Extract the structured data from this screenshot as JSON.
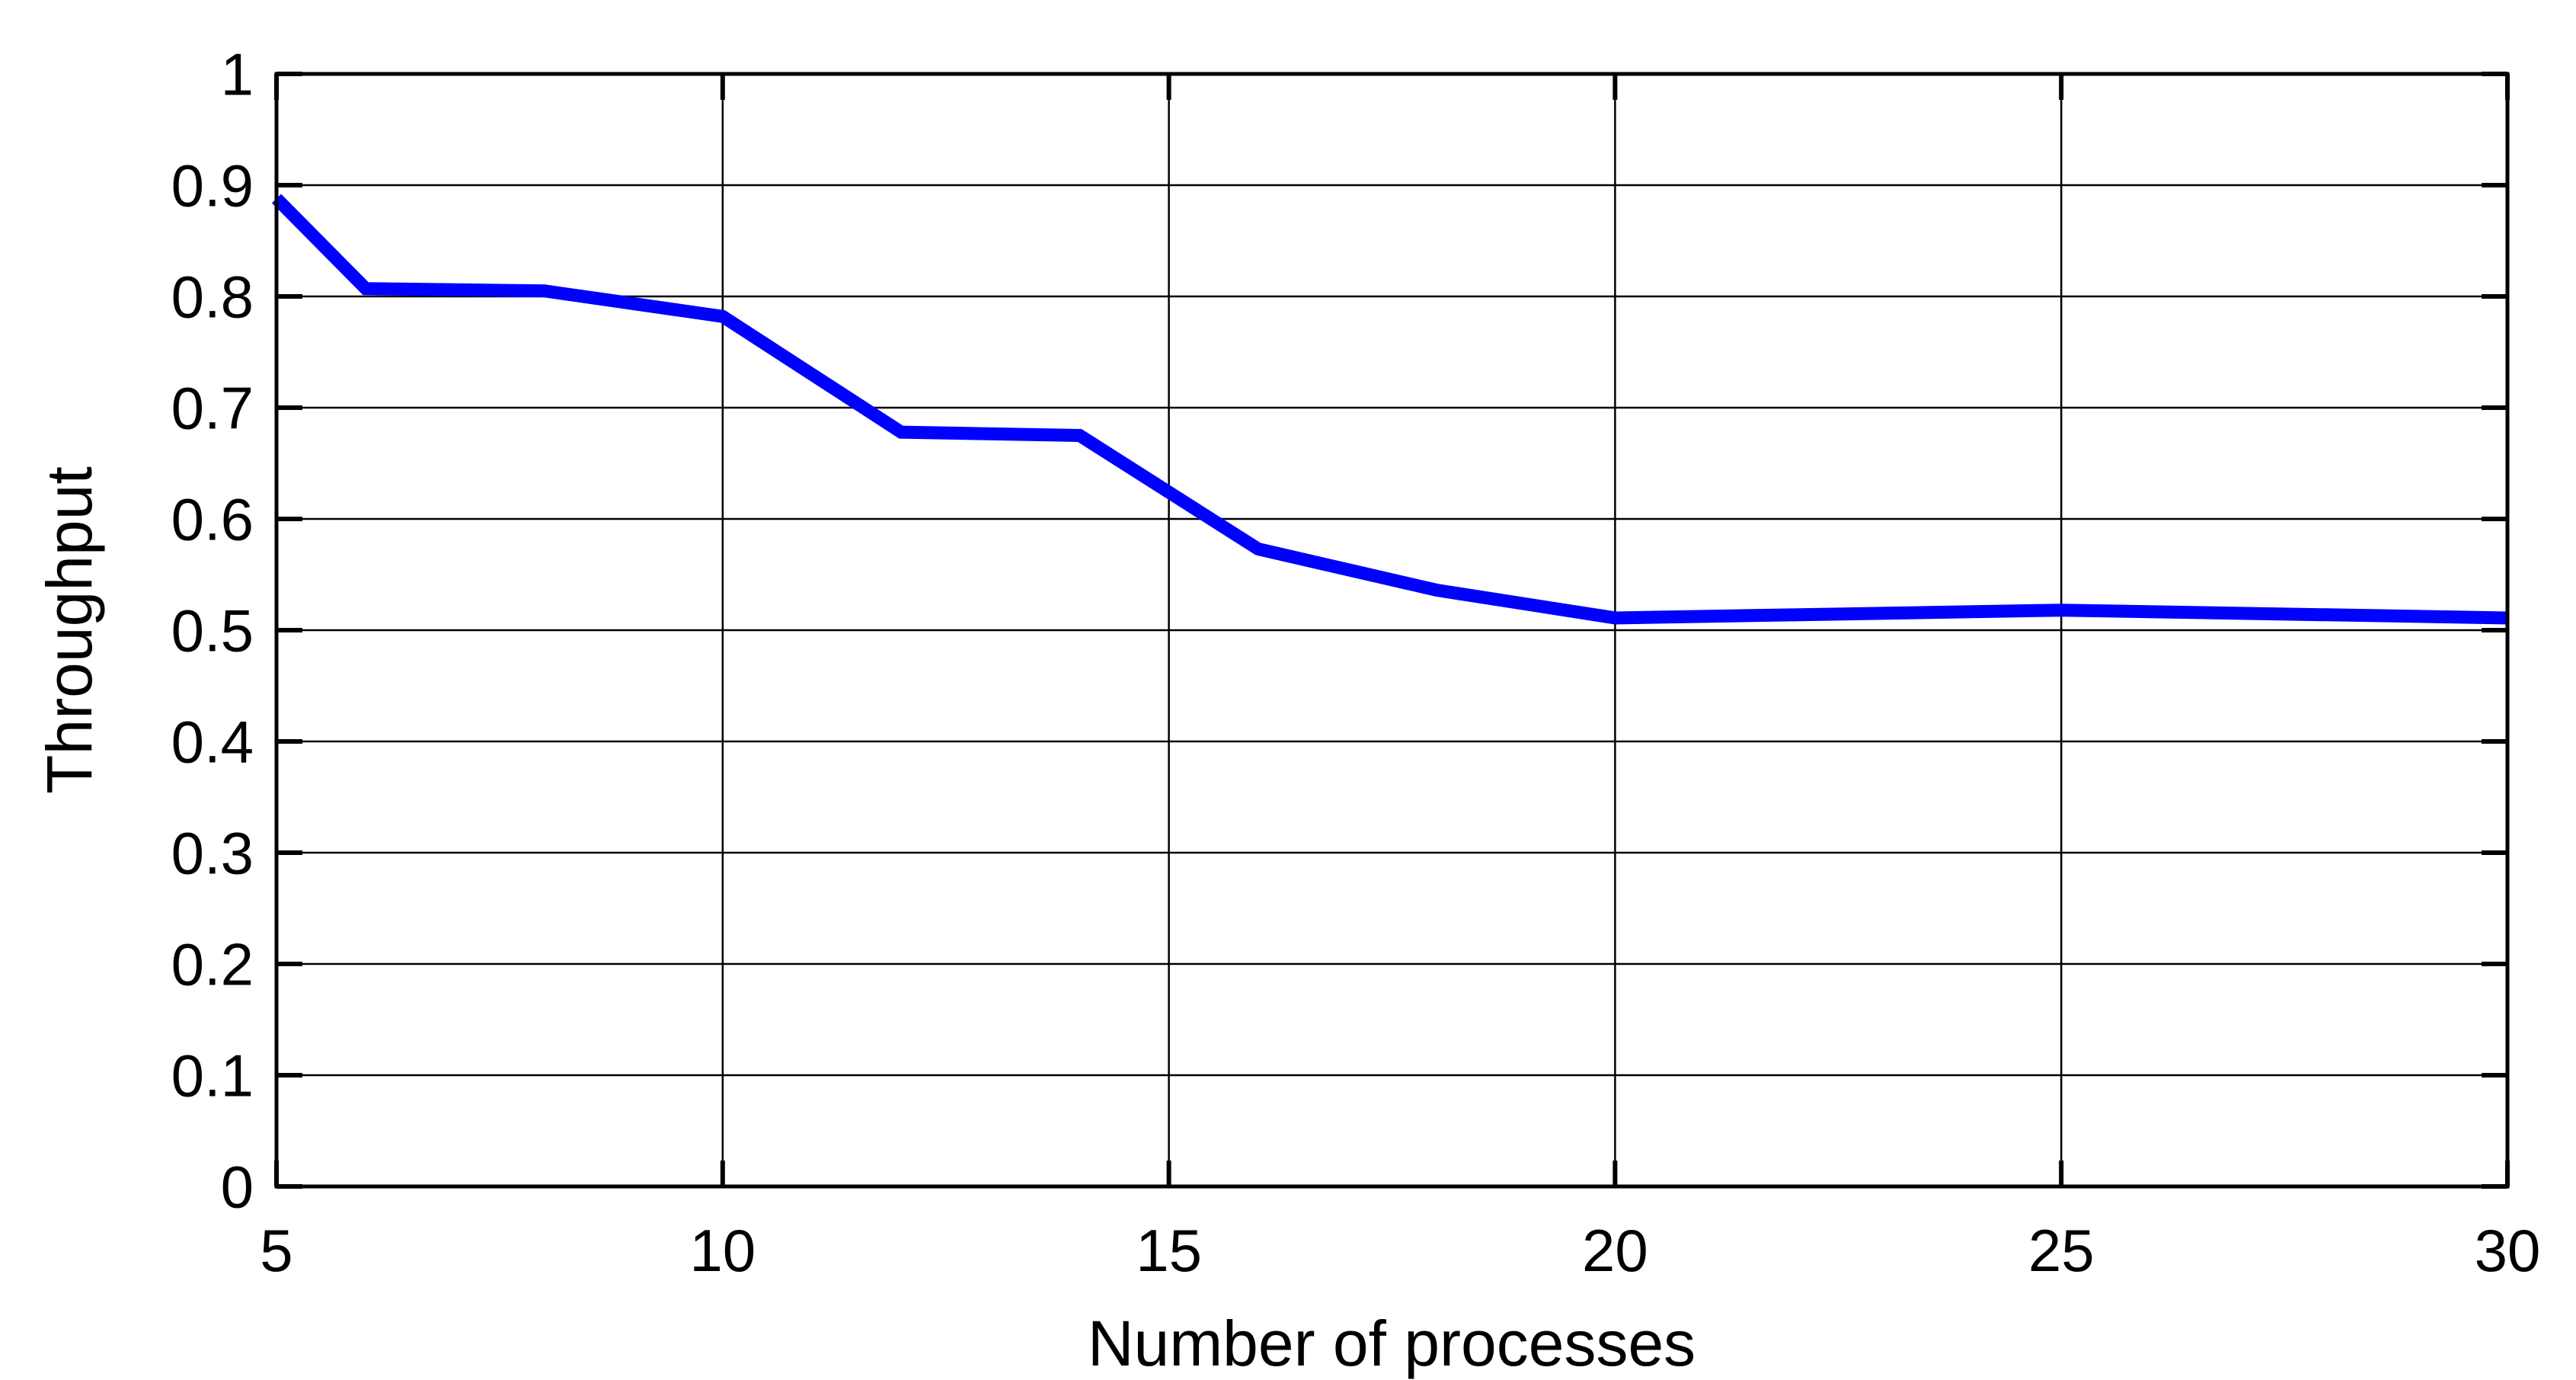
{
  "chart_data": {
    "type": "line",
    "title": "",
    "xlabel": "Number of processes",
    "ylabel": "Throughput",
    "xlim": [
      5,
      30
    ],
    "ylim": [
      0,
      1
    ],
    "x_ticks": [
      5,
      10,
      15,
      20,
      25,
      30
    ],
    "x_tick_labels": [
      "5",
      "10",
      "15",
      "20",
      "25",
      "30"
    ],
    "y_ticks": [
      0,
      0.1,
      0.2,
      0.3,
      0.4,
      0.5,
      0.6,
      0.7,
      0.8,
      0.9,
      1
    ],
    "y_tick_labels": [
      "0",
      "0.1",
      "0.2",
      "0.3",
      "0.4",
      "0.5",
      "0.6",
      "0.7",
      "0.8",
      "0.9",
      "1"
    ],
    "grid": true,
    "grid_style": "solid",
    "legend": null,
    "colors": {
      "line": "#0000FF",
      "axis": "#000000",
      "grid": "#000000",
      "background": "#FFFFFF"
    },
    "line_width": 17,
    "series": [
      {
        "name": "throughput",
        "color": "#0000FF",
        "x": [
          5,
          6,
          8,
          10,
          12,
          14,
          16,
          18,
          20,
          25,
          30
        ],
        "y": [
          0.888,
          0.807,
          0.805,
          0.782,
          0.678,
          0.675,
          0.573,
          0.536,
          0.511,
          0.518,
          0.511
        ]
      }
    ]
  }
}
